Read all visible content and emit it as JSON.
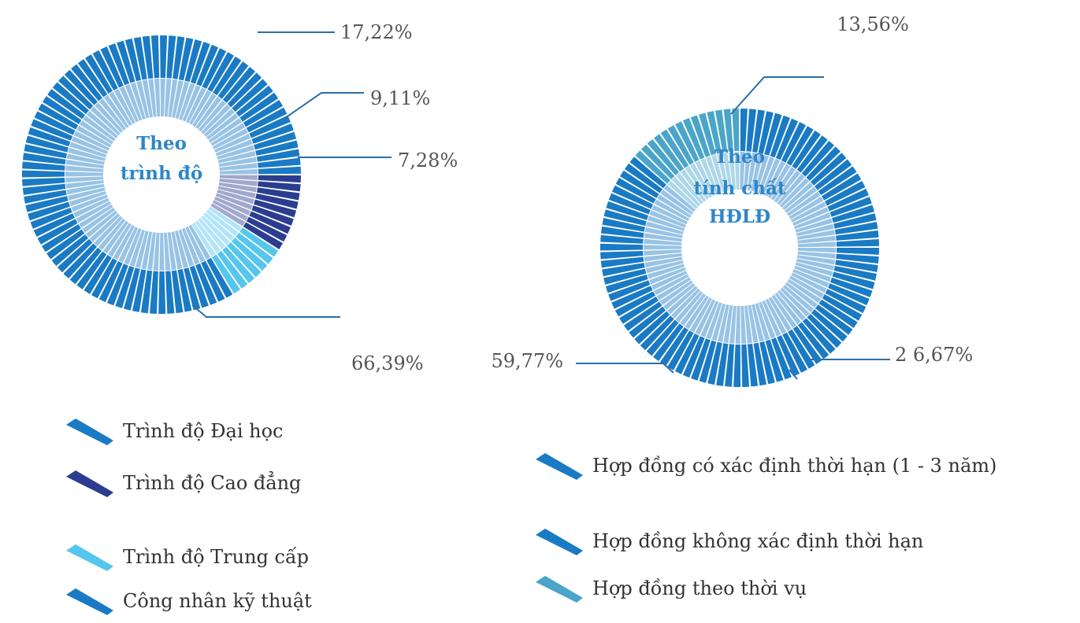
{
  "chart_data": [
    {
      "type": "pie",
      "title": "Theo trình độ",
      "center_lines": [
        "Theo",
        "trình độ"
      ],
      "slices": [
        {
          "label": "Trình độ Đại học",
          "value": 17.22,
          "display": "17,22%",
          "color": "#1a7ac4"
        },
        {
          "label": "Trình độ Cao đẳng",
          "value": 9.11,
          "display": "9,11%",
          "color": "#2b3d8f"
        },
        {
          "label": "Trình độ Trung cấp",
          "value": 7.28,
          "display": "7,28%",
          "color": "#55c6ee"
        },
        {
          "label": "Công nhân kỹ thuật",
          "value": 66.39,
          "display": "66,39%",
          "color": "#1a7ac4"
        }
      ]
    },
    {
      "type": "pie",
      "title": "Theo tính chất HĐLĐ",
      "center_lines": [
        "Theo",
        "tính chất",
        "HĐLĐ"
      ],
      "slices": [
        {
          "label": "Hợp đồng có xác định thời hạn (1 - 3 năm)",
          "value": 59.77,
          "display": "59,77%",
          "color": "#1a7ac4"
        },
        {
          "label": "Hợp đồng không xác định thời hạn",
          "value": 26.67,
          "display": "2 6,67%",
          "color": "#1a7ac4"
        },
        {
          "label": "Hợp đồng theo thời vụ",
          "value": 13.56,
          "display": "13,56%",
          "color": "#4aa5c9"
        }
      ]
    }
  ],
  "legend_left": [
    {
      "label": "Trình độ Đại học",
      "color": "#1a7ac4"
    },
    {
      "label": "Trình độ Cao đẳng",
      "color": "#2b3d8f"
    },
    {
      "label": "Trình độ Trung cấp",
      "color": "#55c6ee"
    },
    {
      "label": "Công nhân kỹ thuật",
      "color": "#1a7ac4"
    }
  ],
  "legend_right": [
    {
      "label": "Hợp đồng có xác định thời hạn (1 - 3 năm)",
      "color": "#1a7ac4"
    },
    {
      "label": "Hợp đồng không xác định thời hạn",
      "color": "#1a7ac4"
    },
    {
      "label": "Hợp đồng theo thời vụ",
      "color": "#4aa5c9"
    }
  ]
}
